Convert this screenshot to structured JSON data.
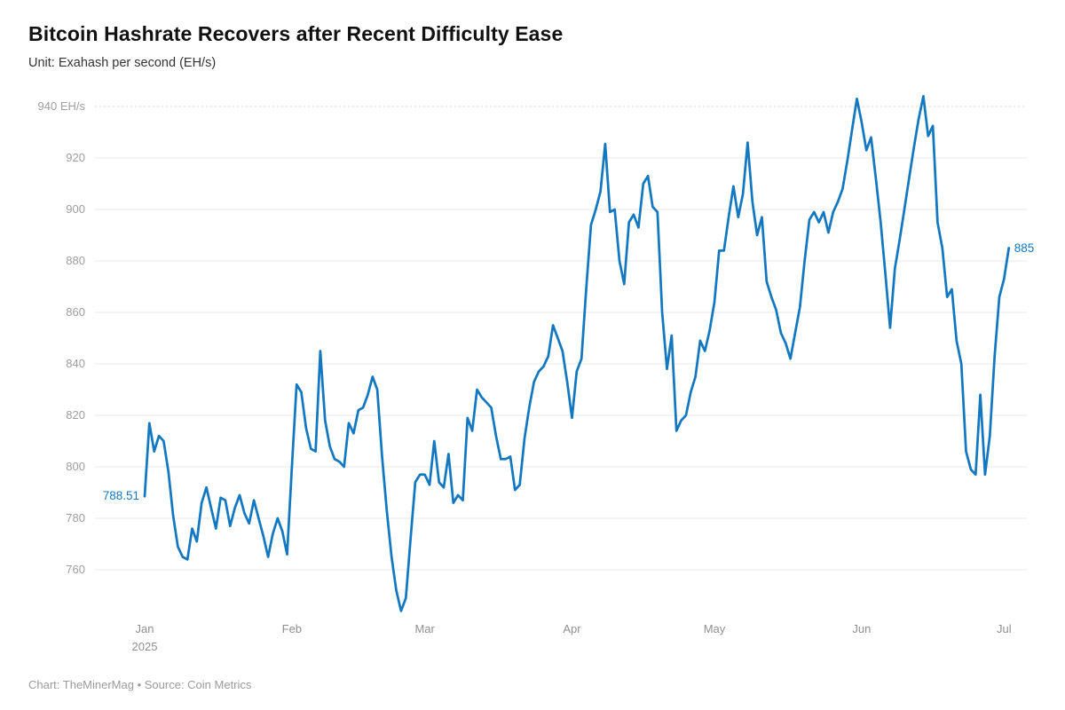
{
  "header": {
    "title": "Bitcoin Hashrate Recovers after Recent Difficulty Ease",
    "subtitle": "Unit: Exahash per second (EH/s)"
  },
  "footer": {
    "text": "Chart: TheMinerMag • Source: Coin Metrics"
  },
  "chart_data": {
    "type": "line",
    "title": "Bitcoin Hashrate Recovers after Recent Difficulty Ease",
    "subtitle": "Unit: Exahash per second (EH/s)",
    "xlabel": "",
    "ylabel": "Exahash per second (EH/s)",
    "ylim": [
      740,
      945
    ],
    "grid": "horizontal",
    "legend_position": "none",
    "line_color": "#1478c0",
    "y_ticks": [
      {
        "value": 940,
        "label": "940 EH/s"
      },
      {
        "value": 920,
        "label": "920"
      },
      {
        "value": 900,
        "label": "900"
      },
      {
        "value": 880,
        "label": "880"
      },
      {
        "value": 860,
        "label": "860"
      },
      {
        "value": 840,
        "label": "840"
      },
      {
        "value": 820,
        "label": "820"
      },
      {
        "value": 800,
        "label": "800"
      },
      {
        "value": 780,
        "label": "780"
      },
      {
        "value": 760,
        "label": "760"
      }
    ],
    "x_ticks": [
      {
        "label": "Jan",
        "sublabel": "2025",
        "day_offset": 0
      },
      {
        "label": "Feb",
        "sublabel": "",
        "day_offset": 31
      },
      {
        "label": "Mar",
        "sublabel": "",
        "day_offset": 59
      },
      {
        "label": "Apr",
        "sublabel": "",
        "day_offset": 90
      },
      {
        "label": "May",
        "sublabel": "",
        "day_offset": 120
      },
      {
        "label": "Jun",
        "sublabel": "",
        "day_offset": 151
      },
      {
        "label": "Jul",
        "sublabel": "",
        "day_offset": 181
      }
    ],
    "annotations": {
      "start_label": "788.51",
      "end_label": "885"
    },
    "series": [
      {
        "name": "Bitcoin hashrate (EH/s)",
        "start_date": "2025-01-01",
        "frequency": "daily",
        "values": [
          788.51,
          817,
          806,
          812,
          810,
          798,
          781,
          769,
          765,
          764,
          776,
          771,
          786,
          792,
          784,
          776,
          788,
          787,
          777,
          784,
          789,
          782,
          778,
          787,
          780,
          773,
          765,
          774,
          780,
          775,
          766,
          800,
          832,
          829,
          815,
          807,
          806,
          845,
          818,
          808,
          803,
          802,
          800,
          817,
          813,
          822,
          823,
          828,
          835,
          830,
          804,
          783,
          765,
          752,
          744,
          749,
          772,
          794,
          797,
          797,
          793,
          810,
          794,
          792,
          805,
          786,
          789,
          787,
          819,
          814,
          830,
          827,
          825,
          823,
          812,
          803,
          803,
          804,
          791,
          793,
          811,
          823,
          833,
          837,
          839,
          843,
          855,
          850,
          845,
          833,
          819,
          837,
          842,
          869,
          894,
          900,
          907,
          925.5,
          899,
          900,
          880,
          871,
          895,
          898,
          893,
          910,
          913,
          901,
          899,
          860,
          838,
          851,
          814,
          818,
          820,
          829,
          835,
          849,
          845,
          853,
          864,
          884,
          884,
          897,
          909,
          897,
          906,
          926,
          903,
          890,
          897,
          872,
          866,
          861,
          852,
          848,
          842,
          852,
          862,
          880,
          896,
          899,
          895,
          899,
          891,
          899,
          903,
          908,
          919,
          931,
          943,
          934,
          923,
          928,
          912,
          895,
          875,
          854,
          877,
          888,
          900,
          912,
          924,
          935,
          944,
          928.5,
          932.5,
          895,
          885,
          866,
          869,
          849,
          840,
          806,
          799,
          797,
          828,
          797,
          812,
          843,
          866,
          873,
          885
        ]
      }
    ]
  }
}
